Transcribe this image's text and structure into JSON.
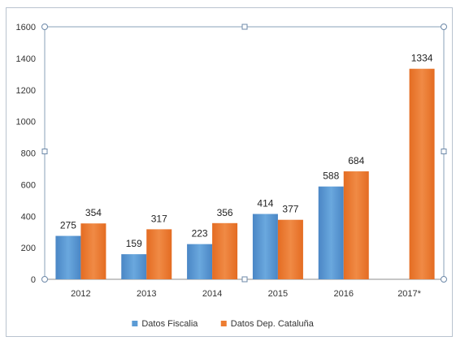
{
  "chart_data": {
    "type": "bar",
    "categories": [
      "2012",
      "2013",
      "2014",
      "2015",
      "2016",
      "2017*"
    ],
    "series": [
      {
        "name": "Datos Fiscalia",
        "color": "#5b9bd5",
        "values": [
          275,
          159,
          223,
          414,
          588,
          null
        ]
      },
      {
        "name": "Datos Dep. Cataluña",
        "color": "#ed7d31",
        "values": [
          354,
          317,
          356,
          377,
          684,
          1334
        ]
      }
    ],
    "data_labels": [
      [
        "275",
        "159",
        "223",
        "414",
        "588",
        ""
      ],
      [
        "354",
        "317",
        "356",
        "377",
        "684",
        "1334"
      ]
    ],
    "yticks": [
      "0",
      "200",
      "400",
      "600",
      "800",
      "1000",
      "1200",
      "1400",
      "1600"
    ],
    "ylim": [
      0,
      1600
    ],
    "grid": false,
    "legend_position": "bottom"
  }
}
